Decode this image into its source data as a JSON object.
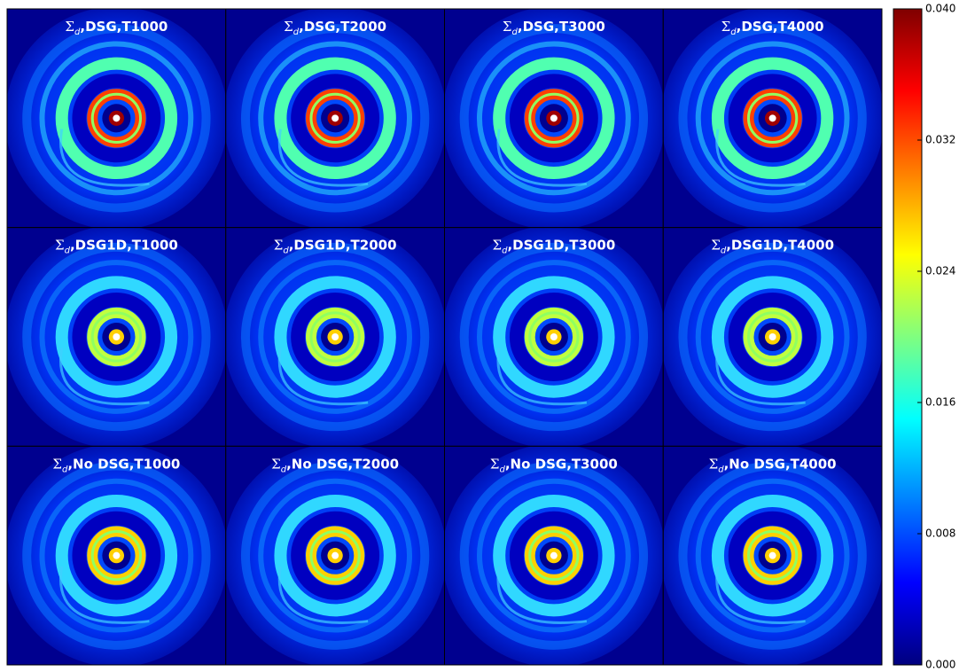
{
  "chart_data": {
    "type": "image-grid",
    "panels": [
      {
        "title": "Σd,DSG,T1000"
      },
      {
        "title": "Σd,DSG,T2000"
      },
      {
        "title": "Σd,DSG,T3000"
      },
      {
        "title": "Σd,DSG,T4000"
      },
      {
        "title": "Σd,DSG1D,T1000"
      },
      {
        "title": "Σd,DSG1D,T2000"
      },
      {
        "title": "Σd,DSG1D,T3000"
      },
      {
        "title": "Σd,DSG1D,T4000"
      },
      {
        "title": "Σd,No DSG,T1000"
      },
      {
        "title": "Σd,No DSG,T2000"
      },
      {
        "title": "Σd,No DSG,T3000"
      },
      {
        "title": "Σd,No DSG,T4000"
      }
    ],
    "colorbar": {
      "colormap": "jet",
      "ylim": [
        0,
        0.04
      ],
      "yticks": [
        {
          "value": 0,
          "label": "0.000"
        },
        {
          "value": 0.008,
          "label": "0.008"
        },
        {
          "value": 0.016,
          "label": "0.016"
        },
        {
          "value": 0.024,
          "label": "0.024"
        },
        {
          "value": 0.032,
          "label": "0.032"
        },
        {
          "value": 0.04,
          "label": "0.040"
        }
      ]
    }
  }
}
